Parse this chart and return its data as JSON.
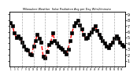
{
  "title": "Milwaukee Weather  Solar Radiation Avg per Day W/m2/minute",
  "line_color": "#FF0000",
  "marker_color": "#000000",
  "background_color": "#FFFFFF",
  "grid_color": "#888888",
  "ylim": [
    0,
    9.5
  ],
  "yticks": [
    1,
    2,
    3,
    4,
    5,
    6,
    7,
    8,
    9
  ],
  "values": [
    7.5,
    7.0,
    5.8,
    5.0,
    5.2,
    4.8,
    4.2,
    3.5,
    3.0,
    2.8,
    2.2,
    2.0,
    3.5,
    4.5,
    5.5,
    4.8,
    4.2,
    1.8,
    1.5,
    2.5,
    3.8,
    4.2,
    5.8,
    4.5,
    4.0,
    3.5,
    3.2,
    3.0,
    2.5,
    2.2,
    3.0,
    4.5,
    5.8,
    7.0,
    7.5,
    8.0,
    7.2,
    6.5,
    5.5,
    4.8,
    5.0,
    5.5,
    6.0,
    6.5,
    7.0,
    6.2,
    5.5,
    5.0,
    4.5,
    4.0,
    3.5,
    3.2,
    3.8,
    4.2,
    4.8,
    5.2,
    4.8,
    4.2,
    3.8,
    3.5
  ],
  "gridline_positions": [
    6,
    12,
    18,
    24,
    30,
    36,
    42,
    48,
    54
  ],
  "n_points": 60,
  "marker_size": 2.5,
  "line_width": 1.0,
  "marker_every": 1
}
